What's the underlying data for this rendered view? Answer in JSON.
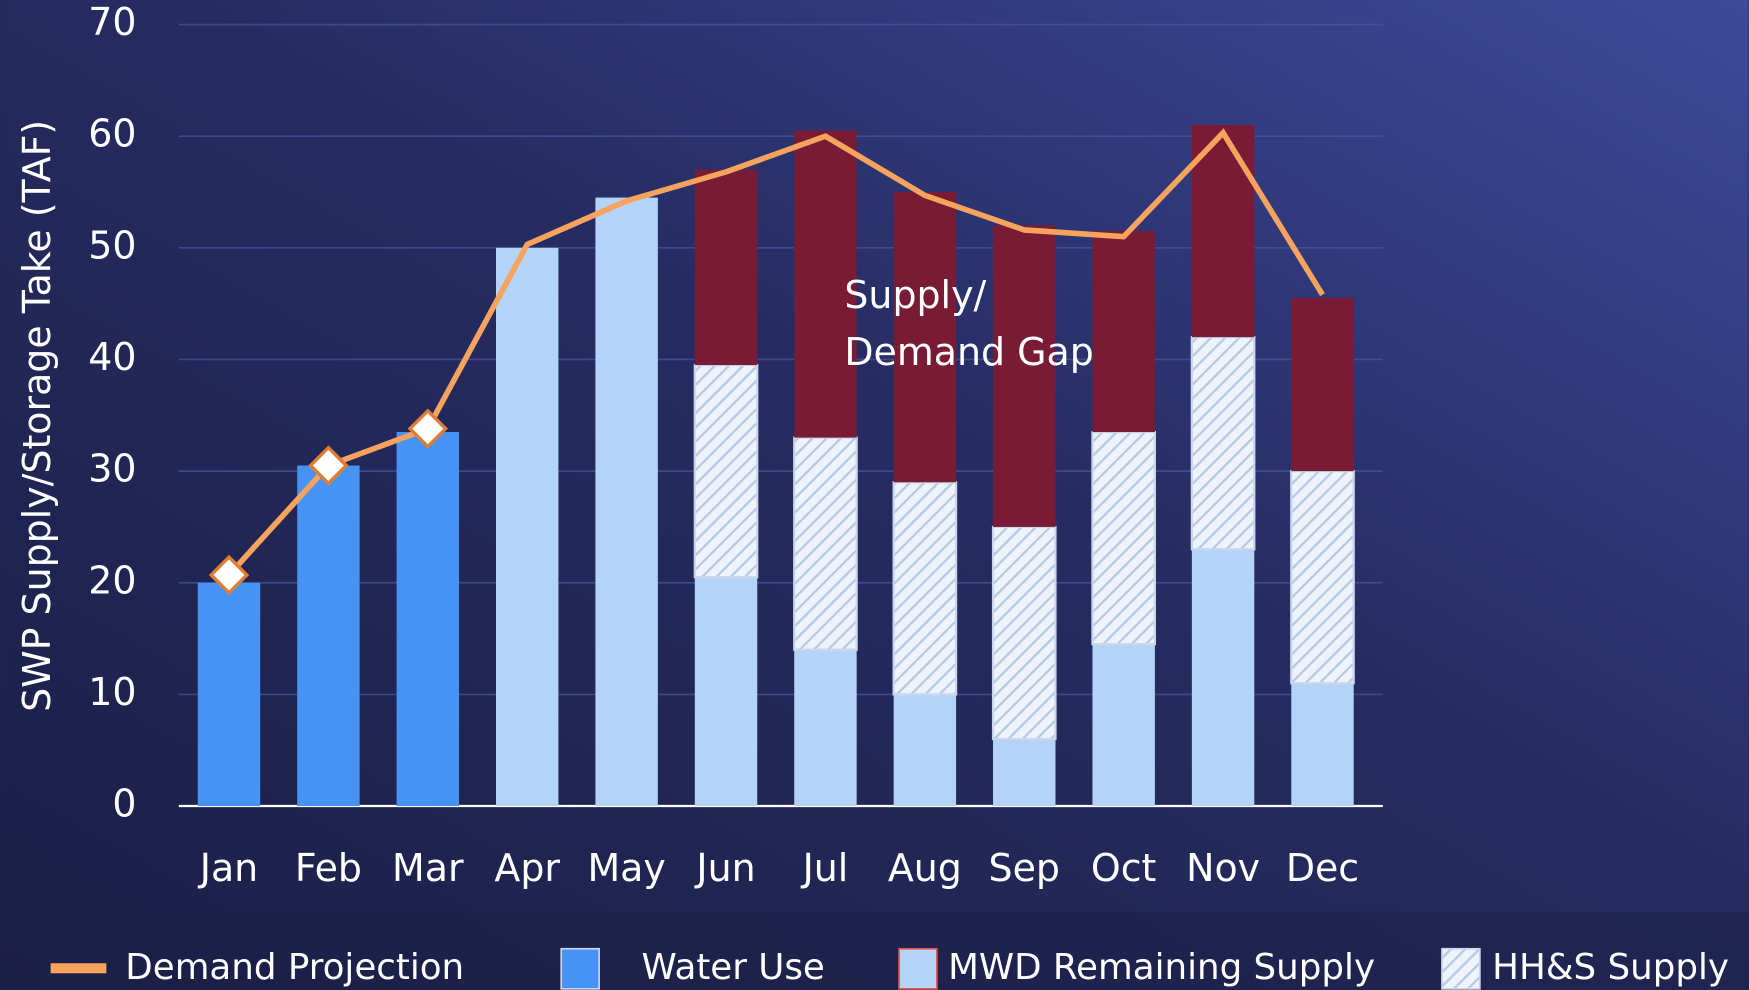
{
  "chart_data": {
    "type": "stacked_bar_line",
    "y_axis_label": "SWP Supply/Storage Take (TAF)",
    "categories": [
      "Jan",
      "Feb",
      "Mar",
      "Apr",
      "May",
      "Jun",
      "Jul",
      "Aug",
      "Sep",
      "Oct",
      "Nov",
      "Dec"
    ],
    "ylim": [
      0,
      70
    ],
    "yticks": [
      0,
      10,
      20,
      30,
      40,
      50,
      60,
      70
    ],
    "grid": true,
    "series": [
      {
        "name": "Water Use",
        "color": "#4793f5",
        "values": [
          20,
          30.5,
          33.5,
          null,
          null,
          null,
          null,
          null,
          null,
          null,
          null,
          null
        ]
      },
      {
        "name": "MWD Remaining Supply",
        "color": "#b3d4f8",
        "values": [
          null,
          null,
          null,
          50,
          54.5,
          20.5,
          14,
          10,
          6,
          14.5,
          23,
          11
        ]
      },
      {
        "name": "HH&S Supply",
        "color": "#e6edf8",
        "hatch": true,
        "values": [
          null,
          null,
          null,
          null,
          null,
          19,
          19,
          19,
          19,
          19,
          19,
          19
        ]
      },
      {
        "color": "#7a1b35",
        "values": [
          null,
          null,
          null,
          null,
          null,
          17.5,
          27.5,
          26,
          27,
          18,
          19,
          15.5
        ]
      }
    ],
    "line": {
      "name": "Demand Projection",
      "color": "#f7a35e",
      "values": [
        20.7,
        30.5,
        33.8,
        50.3,
        54.2,
        56.8,
        60,
        54.7,
        51.6,
        51,
        60.3,
        45.8
      ],
      "marked_points": 3
    },
    "annotation": [
      "Supply/",
      "Demand Gap"
    ]
  }
}
